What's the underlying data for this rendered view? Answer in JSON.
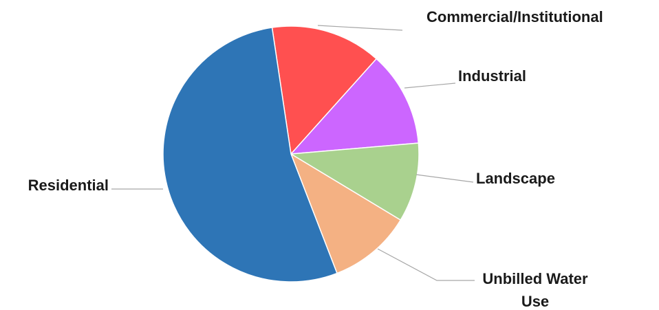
{
  "chart_data": {
    "type": "pie",
    "title": "",
    "slices": [
      {
        "label": "Commercial/Institutional",
        "value": 14,
        "color": "#ff5050"
      },
      {
        "label": "Industrial",
        "value": 12,
        "color": "#cc66ff"
      },
      {
        "label": "Landscape",
        "value": 10,
        "color": "#a9d18e"
      },
      {
        "label": "Unbilled Water Use",
        "value": 10.5,
        "color": "#f4b183"
      },
      {
        "label": "Residential",
        "value": 53.5,
        "color": "#2e75b6"
      }
    ],
    "legend": "none",
    "data_labels": "category names outside with leader lines"
  }
}
